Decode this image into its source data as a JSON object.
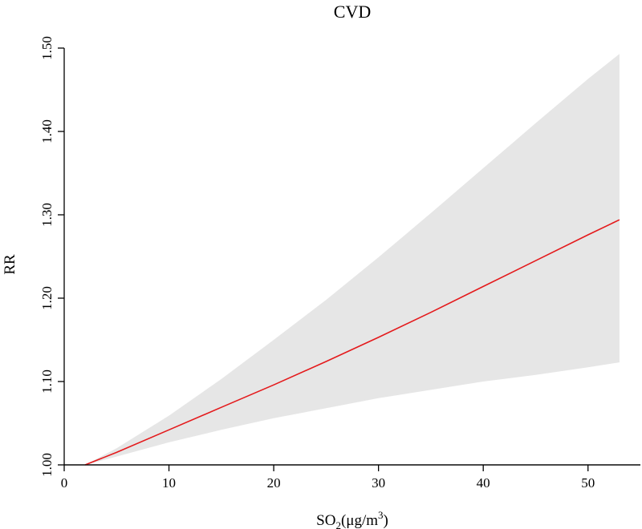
{
  "chart_data": {
    "type": "line",
    "title": "CVD",
    "ylabel": "RR",
    "xlabel": {
      "main": "SO",
      "subscript": "2",
      "units_open": "(μg/m",
      "superscript": "3",
      "units_close": ")"
    },
    "xlim": [
      0,
      55
    ],
    "ylim": [
      1.0,
      1.5
    ],
    "x_ticks": [
      0,
      10,
      20,
      30,
      40,
      50
    ],
    "x_tick_labels": [
      "0",
      "10",
      "20",
      "30",
      "40",
      "50"
    ],
    "y_ticks": [
      1.0,
      1.1,
      1.2,
      1.3,
      1.4,
      1.5
    ],
    "y_tick_labels": [
      "1.00",
      "1.10",
      "1.20",
      "1.30",
      "1.40",
      "1.50"
    ],
    "reference_line": {
      "y": 1.0
    },
    "series": [
      {
        "name": "RR",
        "color": "#e41a1c",
        "x": [
          2,
          5,
          10,
          15,
          20,
          25,
          30,
          35,
          40,
          45,
          50,
          53
        ],
        "y": [
          1.0,
          1.015,
          1.042,
          1.069,
          1.096,
          1.124,
          1.153,
          1.183,
          1.214,
          1.245,
          1.276,
          1.294
        ]
      }
    ],
    "confidence_band": {
      "color": "#e6e6e6",
      "x": [
        2,
        5,
        10,
        15,
        20,
        25,
        30,
        35,
        40,
        45,
        50,
        53
      ],
      "upper": [
        1.0,
        1.02,
        1.059,
        1.103,
        1.15,
        1.198,
        1.249,
        1.302,
        1.356,
        1.41,
        1.463,
        1.493
      ],
      "lower": [
        1.0,
        1.01,
        1.027,
        1.042,
        1.056,
        1.068,
        1.08,
        1.09,
        1.1,
        1.108,
        1.117,
        1.123
      ]
    },
    "grid": false
  }
}
